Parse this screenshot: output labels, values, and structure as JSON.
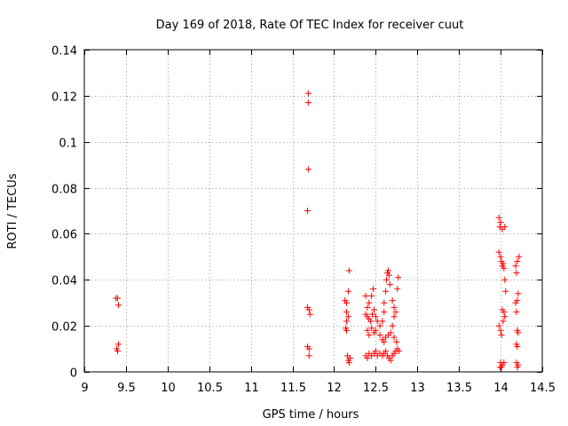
{
  "chart_data": {
    "type": "scatter",
    "title": "Day 169 of 2018, Rate Of TEC Index for receiver cuut",
    "xlabel": "GPS time / hours",
    "ylabel": "ROTI / TECUs",
    "xlim": [
      9,
      14.5
    ],
    "ylim": [
      0,
      0.14
    ],
    "xticks": [
      9,
      9.5,
      10,
      10.5,
      11,
      11.5,
      12,
      12.5,
      13,
      13.5,
      14,
      14.5
    ],
    "xtick_labels": [
      "9",
      "9.5",
      "10",
      "10.5",
      "11",
      "11.5",
      "12",
      "12.5",
      "13",
      "13.5",
      "14",
      "14.5"
    ],
    "yticks": [
      0,
      0.02,
      0.04,
      0.06,
      0.08,
      0.1,
      0.12,
      0.14
    ],
    "ytick_labels": [
      "0",
      "0.02",
      "0.04",
      "0.06",
      "0.08",
      "0.1",
      "0.12",
      "0.14"
    ],
    "grid": true,
    "marker": "+",
    "series": [
      {
        "name": "ROTI",
        "color": "#ff0000",
        "points": [
          [
            9.38,
            0.032
          ],
          [
            9.4,
            0.032
          ],
          [
            9.41,
            0.029
          ],
          [
            9.39,
            0.01
          ],
          [
            9.41,
            0.012
          ],
          [
            9.4,
            0.009
          ],
          [
            11.69,
            0.121
          ],
          [
            11.69,
            0.117
          ],
          [
            11.69,
            0.088
          ],
          [
            11.68,
            0.07
          ],
          [
            11.68,
            0.028
          ],
          [
            11.7,
            0.027
          ],
          [
            11.71,
            0.025
          ],
          [
            11.68,
            0.011
          ],
          [
            11.7,
            0.01
          ],
          [
            11.7,
            0.007
          ],
          [
            12.13,
            0.031
          ],
          [
            12.15,
            0.03
          ],
          [
            12.17,
            0.035
          ],
          [
            12.18,
            0.044
          ],
          [
            12.15,
            0.026
          ],
          [
            12.17,
            0.024
          ],
          [
            12.15,
            0.022
          ],
          [
            12.14,
            0.019
          ],
          [
            12.15,
            0.018
          ],
          [
            12.16,
            0.007
          ],
          [
            12.17,
            0.005
          ],
          [
            12.19,
            0.006
          ],
          [
            12.18,
            0.004
          ],
          [
            12.38,
            0.033
          ],
          [
            12.4,
            0.028
          ],
          [
            12.42,
            0.03
          ],
          [
            12.45,
            0.033
          ],
          [
            12.47,
            0.036
          ],
          [
            12.38,
            0.025
          ],
          [
            12.4,
            0.024
          ],
          [
            12.42,
            0.023
          ],
          [
            12.44,
            0.022
          ],
          [
            12.46,
            0.025
          ],
          [
            12.48,
            0.027
          ],
          [
            12.5,
            0.024
          ],
          [
            12.52,
            0.022
          ],
          [
            12.55,
            0.02
          ],
          [
            12.58,
            0.022
          ],
          [
            12.6,
            0.026
          ],
          [
            12.6,
            0.03
          ],
          [
            12.62,
            0.035
          ],
          [
            12.63,
            0.04
          ],
          [
            12.64,
            0.043
          ],
          [
            12.65,
            0.044
          ],
          [
            12.66,
            0.042
          ],
          [
            12.67,
            0.038
          ],
          [
            12.7,
            0.031
          ],
          [
            12.72,
            0.028
          ],
          [
            12.74,
            0.026
          ],
          [
            12.76,
            0.036
          ],
          [
            12.77,
            0.041
          ],
          [
            12.72,
            0.024
          ],
          [
            12.4,
            0.018
          ],
          [
            12.42,
            0.016
          ],
          [
            12.45,
            0.019
          ],
          [
            12.48,
            0.017
          ],
          [
            12.5,
            0.018
          ],
          [
            12.55,
            0.016
          ],
          [
            12.58,
            0.014
          ],
          [
            12.6,
            0.013
          ],
          [
            12.62,
            0.015
          ],
          [
            12.65,
            0.016
          ],
          [
            12.68,
            0.017
          ],
          [
            12.7,
            0.02
          ],
          [
            12.72,
            0.015
          ],
          [
            12.75,
            0.013
          ],
          [
            12.38,
            0.007
          ],
          [
            12.4,
            0.006
          ],
          [
            12.42,
            0.008
          ],
          [
            12.45,
            0.007
          ],
          [
            12.48,
            0.008
          ],
          [
            12.5,
            0.009
          ],
          [
            12.52,
            0.007
          ],
          [
            12.55,
            0.008
          ],
          [
            12.58,
            0.007
          ],
          [
            12.6,
            0.008
          ],
          [
            12.62,
            0.009
          ],
          [
            12.64,
            0.007
          ],
          [
            12.66,
            0.006
          ],
          [
            12.68,
            0.005
          ],
          [
            12.7,
            0.007
          ],
          [
            12.72,
            0.008
          ],
          [
            12.74,
            0.009
          ],
          [
            12.76,
            0.01
          ],
          [
            12.78,
            0.009
          ],
          [
            13.98,
            0.067
          ],
          [
            14.0,
            0.065
          ],
          [
            13.99,
            0.063
          ],
          [
            14.02,
            0.062
          ],
          [
            14.05,
            0.063
          ],
          [
            13.98,
            0.052
          ],
          [
            14.0,
            0.05
          ],
          [
            14.01,
            0.048
          ],
          [
            14.02,
            0.046
          ],
          [
            14.03,
            0.047
          ],
          [
            14.04,
            0.045
          ],
          [
            14.05,
            0.04
          ],
          [
            14.06,
            0.035
          ],
          [
            14.02,
            0.027
          ],
          [
            14.04,
            0.026
          ],
          [
            14.05,
            0.024
          ],
          [
            14.03,
            0.022
          ],
          [
            13.98,
            0.02
          ],
          [
            14.0,
            0.018
          ],
          [
            14.01,
            0.016
          ],
          [
            14.0,
            0.004
          ],
          [
            14.02,
            0.003
          ],
          [
            14.04,
            0.004
          ],
          [
            13.99,
            0.002
          ],
          [
            14.01,
            0.002
          ],
          [
            14.18,
            0.046
          ],
          [
            14.2,
            0.048
          ],
          [
            14.22,
            0.05
          ],
          [
            14.19,
            0.043
          ],
          [
            14.21,
            0.034
          ],
          [
            14.2,
            0.031
          ],
          [
            14.18,
            0.03
          ],
          [
            14.19,
            0.026
          ],
          [
            14.2,
            0.018
          ],
          [
            14.21,
            0.017
          ],
          [
            14.19,
            0.012
          ],
          [
            14.2,
            0.011
          ],
          [
            14.19,
            0.004
          ],
          [
            14.21,
            0.003
          ],
          [
            14.2,
            0.002
          ]
        ]
      }
    ]
  }
}
